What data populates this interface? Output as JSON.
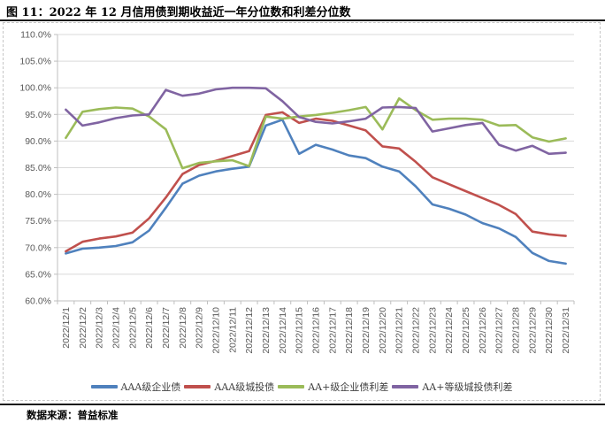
{
  "title": "图 11：2022 年 12 月信用债到期收益近一年分位数和利差分位数",
  "footer": {
    "text": "数据来源：普益标准"
  },
  "chart_data": {
    "type": "line",
    "title": "",
    "xlabel": "",
    "ylabel": "",
    "grid": true,
    "legend_position": "bottom",
    "y_axis": {
      "min": 60,
      "max": 110,
      "step": 5,
      "tick_labels": [
        "60.0%",
        "65.0%",
        "70.0%",
        "75.0%",
        "80.0%",
        "85.0%",
        "90.0%",
        "95.0%",
        "100.0%",
        "105.0%",
        "110.0%"
      ]
    },
    "x_labels": [
      "2022/12/1",
      "2022/12/2",
      "2022/12/3",
      "2022/12/4",
      "2022/12/5",
      "2022/12/6",
      "2022/12/7",
      "2022/12/8",
      "2022/12/9",
      "2022/12/10",
      "2022/12/11",
      "2022/12/12",
      "2022/12/13",
      "2022/12/14",
      "2022/12/15",
      "2022/12/16",
      "2022/12/17",
      "2022/12/18",
      "2022/12/19",
      "2022/12/20",
      "2022/12/21",
      "2022/12/22",
      "2022/12/23",
      "2022/12/24",
      "2022/12/25",
      "2022/12/26",
      "2022/12/27",
      "2022/12/28",
      "2022/12/29",
      "2022/12/30",
      "2022/12/31"
    ],
    "series": [
      {
        "name": "AAA级企业债",
        "color": "#4F81BD",
        "values": [
          68.9,
          69.8,
          70.0,
          70.3,
          71.0,
          73.2,
          77.5,
          82.0,
          83.5,
          84.3,
          84.8,
          85.2,
          92.9,
          94.0,
          87.6,
          89.3,
          88.4,
          87.3,
          86.8,
          85.2,
          84.3,
          81.5,
          78.1,
          77.3,
          76.2,
          74.6,
          73.6,
          72.0,
          69.0,
          67.5,
          67.0
        ]
      },
      {
        "name": "AAA级城投债",
        "color": "#C0504D",
        "values": [
          69.3,
          71.1,
          71.7,
          72.1,
          72.8,
          75.5,
          79.4,
          83.8,
          85.5,
          86.3,
          87.2,
          88.1,
          94.9,
          95.4,
          93.4,
          94.2,
          93.8,
          92.9,
          92.0,
          89.0,
          88.6,
          86.1,
          83.2,
          81.9,
          80.6,
          79.3,
          78.0,
          76.3,
          73.0,
          72.5,
          72.2
        ]
      },
      {
        "name": "AA+级企业债利差",
        "color": "#9BBB59",
        "values": [
          90.6,
          95.5,
          96.0,
          96.3,
          96.1,
          94.6,
          92.2,
          84.9,
          85.9,
          86.2,
          86.4,
          85.3,
          94.6,
          94.2,
          94.6,
          94.9,
          95.3,
          95.8,
          96.4,
          92.2,
          98.0,
          95.8,
          94.0,
          94.2,
          94.2,
          94.0,
          92.9,
          93.0,
          90.7,
          89.9,
          90.5
        ]
      },
      {
        "name": "AA+等级城投债利差",
        "color": "#8064A2",
        "values": [
          95.9,
          92.9,
          93.5,
          94.3,
          94.8,
          95.0,
          99.6,
          98.5,
          98.9,
          99.7,
          100.0,
          100.0,
          99.9,
          97.5,
          94.5,
          93.6,
          93.3,
          93.7,
          94.2,
          96.3,
          96.4,
          96.2,
          91.8,
          92.4,
          93.0,
          93.4,
          89.3,
          88.2,
          89.1,
          87.6,
          87.8
        ]
      }
    ],
    "style": {
      "gridline_color": "#D9D9D9",
      "axis_color": "#BFBFBF",
      "tick_label_color": "#595959",
      "line_width": 2.6
    }
  }
}
